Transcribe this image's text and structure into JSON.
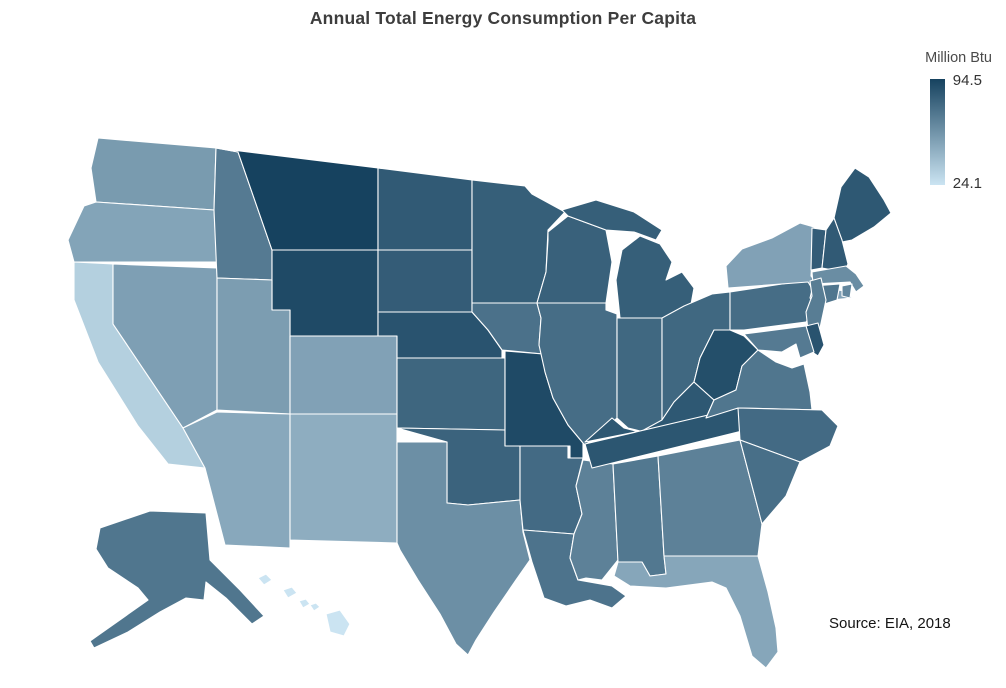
{
  "title": "Annual Total Energy Consumption Per Capita",
  "legend": {
    "label": "Million Btu",
    "max_label": "94.5",
    "min_label": "24.1"
  },
  "source": "Source: EIA, 2018",
  "chart_data": {
    "type": "heatmap",
    "subtype": "us-state-choropleth",
    "title": "Annual Total Energy Consumption Per Capita",
    "unit": "Million Btu",
    "domain": [
      24.1,
      94.5
    ],
    "color_min": "#cbe4f2",
    "color_max": "#16425f",
    "legend_position": "top-right",
    "states": [
      {
        "abbr": "WA",
        "name": "Washington",
        "value": 56
      },
      {
        "abbr": "OR",
        "name": "Oregon",
        "value": 52
      },
      {
        "abbr": "CA",
        "name": "California",
        "value": 33
      },
      {
        "abbr": "NV",
        "name": "Nevada",
        "value": 54
      },
      {
        "abbr": "ID",
        "name": "Idaho",
        "value": 70
      },
      {
        "abbr": "MT",
        "name": "Montana",
        "value": 94.5
      },
      {
        "abbr": "WY",
        "name": "Wyoming",
        "value": 91
      },
      {
        "abbr": "UT",
        "name": "Utah",
        "value": 55
      },
      {
        "abbr": "CO",
        "name": "Colorado",
        "value": 53
      },
      {
        "abbr": "AZ",
        "name": "Arizona",
        "value": 50
      },
      {
        "abbr": "NM",
        "name": "New Mexico",
        "value": 48
      },
      {
        "abbr": "ND",
        "name": "North Dakota",
        "value": 84
      },
      {
        "abbr": "SD",
        "name": "South Dakota",
        "value": 83
      },
      {
        "abbr": "NE",
        "name": "Nebraska",
        "value": 87
      },
      {
        "abbr": "KS",
        "name": "Kansas",
        "value": 79
      },
      {
        "abbr": "OK",
        "name": "Oklahoma",
        "value": 80
      },
      {
        "abbr": "TX",
        "name": "Texas",
        "value": 61
      },
      {
        "abbr": "MN",
        "name": "Minnesota",
        "value": 82
      },
      {
        "abbr": "IA",
        "name": "Iowa",
        "value": 74
      },
      {
        "abbr": "MO",
        "name": "Missouri",
        "value": 91
      },
      {
        "abbr": "AR",
        "name": "Arkansas",
        "value": 77
      },
      {
        "abbr": "LA",
        "name": "Louisiana",
        "value": 73
      },
      {
        "abbr": "MS",
        "name": "Mississippi",
        "value": 67
      },
      {
        "abbr": "AL",
        "name": "Alabama",
        "value": 71
      },
      {
        "abbr": "GA",
        "name": "Georgia",
        "value": 67
      },
      {
        "abbr": "FL",
        "name": "Florida",
        "value": 51
      },
      {
        "abbr": "WI",
        "name": "Wisconsin",
        "value": 81
      },
      {
        "abbr": "IL",
        "name": "Illinois",
        "value": 76
      },
      {
        "abbr": "MI",
        "name": "Michigan",
        "value": 82
      },
      {
        "abbr": "IN",
        "name": "Indiana",
        "value": 78
      },
      {
        "abbr": "OH",
        "name": "Ohio",
        "value": 78
      },
      {
        "abbr": "KY",
        "name": "Kentucky",
        "value": 85
      },
      {
        "abbr": "TN",
        "name": "Tennessee",
        "value": 86
      },
      {
        "abbr": "WV",
        "name": "West Virginia",
        "value": 89
      },
      {
        "abbr": "VA",
        "name": "Virginia",
        "value": 72
      },
      {
        "abbr": "NC",
        "name": "North Carolina",
        "value": 77
      },
      {
        "abbr": "SC",
        "name": "South Carolina",
        "value": 75
      },
      {
        "abbr": "PA",
        "name": "Pennsylvania",
        "value": 76
      },
      {
        "abbr": "NY",
        "name": "New York",
        "value": 53
      },
      {
        "abbr": "ME",
        "name": "Maine",
        "value": 85
      },
      {
        "abbr": "VT",
        "name": "Vermont",
        "value": 83
      },
      {
        "abbr": "NH",
        "name": "New Hampshire",
        "value": 84
      },
      {
        "abbr": "MA",
        "name": "Massachusetts",
        "value": 62
      },
      {
        "abbr": "RI",
        "name": "Rhode Island",
        "value": 65
      },
      {
        "abbr": "CT",
        "name": "Connecticut",
        "value": 72
      },
      {
        "abbr": "NJ",
        "name": "New Jersey",
        "value": 69
      },
      {
        "abbr": "DE",
        "name": "Delaware",
        "value": 87
      },
      {
        "abbr": "MD",
        "name": "Maryland",
        "value": 70
      },
      {
        "abbr": "AK",
        "name": "Alaska",
        "value": 72
      },
      {
        "abbr": "HI",
        "name": "Hawaii",
        "value": 24.1
      }
    ]
  }
}
